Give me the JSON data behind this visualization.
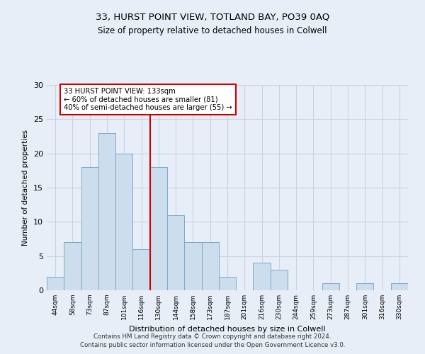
{
  "title1": "33, HURST POINT VIEW, TOTLAND BAY, PO39 0AQ",
  "title2": "Size of property relative to detached houses in Colwell",
  "xlabel": "Distribution of detached houses by size in Colwell",
  "ylabel": "Number of detached properties",
  "bar_labels": [
    "44sqm",
    "58sqm",
    "73sqm",
    "87sqm",
    "101sqm",
    "116sqm",
    "130sqm",
    "144sqm",
    "158sqm",
    "173sqm",
    "187sqm",
    "201sqm",
    "216sqm",
    "230sqm",
    "244sqm",
    "259sqm",
    "273sqm",
    "287sqm",
    "301sqm",
    "316sqm",
    "330sqm"
  ],
  "bar_values": [
    2,
    7,
    18,
    23,
    20,
    6,
    18,
    11,
    7,
    7,
    2,
    0,
    4,
    3,
    0,
    0,
    1,
    0,
    1,
    0,
    1
  ],
  "bar_color": "#ccdded",
  "bar_edge_color": "#7aaac8",
  "vline_x": 6.0,
  "vline_color": "#cc0000",
  "annotation_text": "33 HURST POINT VIEW: 133sqm\n← 60% of detached houses are smaller (81)\n40% of semi-detached houses are larger (55) →",
  "annotation_box_color": "#ffffff",
  "annotation_box_edge": "#cc0000",
  "grid_color": "#c8d4e0",
  "background_color": "#e8eef8",
  "plot_bg_color": "#e8eef8",
  "footer1": "Contains HM Land Registry data © Crown copyright and database right 2024.",
  "footer2": "Contains public sector information licensed under the Open Government Licence v3.0.",
  "ylim": [
    0,
    30
  ],
  "yticks": [
    0,
    5,
    10,
    15,
    20,
    25,
    30
  ]
}
